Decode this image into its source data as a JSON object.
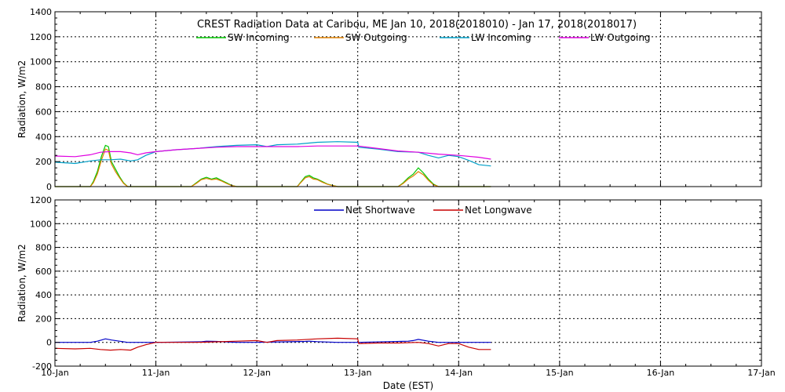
{
  "chart_data": [
    {
      "type": "line",
      "title": "CREST Radiation Data at Caribou, ME   Jan 10, 2018(2018010) - Jan 17, 2018(2018017)",
      "xlabel": "",
      "ylabel": "Radiation, W/m2",
      "ylim": [
        0,
        1400
      ],
      "yticks": [
        0,
        200,
        400,
        600,
        800,
        1000,
        1200,
        1400
      ],
      "xlim": [
        0,
        7
      ],
      "xticks": [
        0,
        1,
        2,
        3,
        4,
        5,
        6,
        7
      ],
      "grid": true,
      "legend": "top-center",
      "series": [
        {
          "name": "SW Incoming",
          "color": "#00c800",
          "x": [
            0.0,
            0.35,
            0.38,
            0.42,
            0.46,
            0.5,
            0.53,
            0.56,
            0.6,
            0.64,
            0.68,
            0.72,
            1.0,
            1.35,
            1.4,
            1.45,
            1.5,
            1.55,
            1.6,
            1.65,
            1.7,
            1.75,
            1.8,
            2.0,
            2.4,
            2.44,
            2.48,
            2.52,
            2.56,
            2.6,
            2.65,
            2.7,
            2.75,
            2.8,
            2.85,
            3.0,
            3.4,
            3.45,
            3.5,
            3.55,
            3.6,
            3.65,
            3.7,
            3.75,
            3.8,
            4.0,
            4.32
          ],
          "y": [
            0,
            0,
            40,
            120,
            240,
            330,
            320,
            200,
            140,
            80,
            30,
            0,
            0,
            0,
            30,
            60,
            75,
            60,
            70,
            50,
            30,
            10,
            0,
            0,
            0,
            40,
            80,
            90,
            70,
            60,
            40,
            20,
            10,
            0,
            0,
            0,
            0,
            30,
            70,
            100,
            150,
            110,
            60,
            20,
            0,
            0,
            0
          ]
        },
        {
          "name": "SW Outgoing",
          "color": "#e08000",
          "x": [
            0.0,
            0.35,
            0.38,
            0.42,
            0.46,
            0.5,
            0.53,
            0.56,
            0.6,
            0.64,
            0.68,
            0.72,
            1.0,
            1.35,
            1.4,
            1.45,
            1.5,
            1.55,
            1.6,
            1.65,
            1.7,
            1.75,
            1.8,
            2.0,
            2.4,
            2.44,
            2.48,
            2.52,
            2.56,
            2.6,
            2.65,
            2.7,
            2.75,
            2.8,
            2.85,
            3.0,
            3.4,
            3.45,
            3.5,
            3.55,
            3.6,
            3.65,
            3.7,
            3.75,
            3.8,
            4.0,
            4.32
          ],
          "y": [
            0,
            0,
            30,
            100,
            210,
            300,
            290,
            180,
            120,
            70,
            25,
            0,
            0,
            0,
            25,
            55,
            65,
            55,
            60,
            45,
            25,
            8,
            0,
            0,
            0,
            35,
            70,
            80,
            60,
            55,
            35,
            18,
            8,
            0,
            0,
            0,
            0,
            25,
            60,
            85,
            120,
            95,
            50,
            15,
            0,
            0,
            0
          ]
        },
        {
          "name": "LW Incoming",
          "color": "#00a0c8",
          "x": [
            0.0,
            0.2,
            0.35,
            0.45,
            0.55,
            0.65,
            0.75,
            0.82,
            0.9,
            1.0,
            1.2,
            1.4,
            1.6,
            1.8,
            2.0,
            2.1,
            2.2,
            2.4,
            2.6,
            2.8,
            3.0,
            3.01,
            3.2,
            3.4,
            3.6,
            3.7,
            3.8,
            3.9,
            4.0,
            4.1,
            4.2,
            4.32
          ],
          "y": [
            195,
            185,
            205,
            215,
            215,
            220,
            205,
            215,
            250,
            280,
            295,
            305,
            320,
            330,
            335,
            320,
            335,
            340,
            355,
            360,
            355,
            315,
            300,
            280,
            275,
            250,
            230,
            250,
            240,
            210,
            175,
            165
          ]
        },
        {
          "name": "LW Outgoing",
          "color": "#e000e0",
          "x": [
            0.0,
            0.2,
            0.35,
            0.45,
            0.55,
            0.65,
            0.75,
            0.82,
            0.9,
            1.0,
            1.2,
            1.4,
            1.6,
            1.8,
            2.0,
            2.2,
            2.4,
            2.6,
            2.8,
            3.0,
            3.2,
            3.4,
            3.6,
            3.8,
            4.0,
            4.2,
            4.32
          ],
          "y": [
            245,
            240,
            255,
            275,
            280,
            280,
            270,
            255,
            270,
            280,
            295,
            305,
            315,
            320,
            320,
            320,
            320,
            325,
            325,
            325,
            305,
            285,
            275,
            260,
            250,
            235,
            220
          ]
        }
      ]
    },
    {
      "type": "line",
      "title": "",
      "xlabel": "Date (EST)",
      "ylabel": "Radiation, W/m2",
      "ylim": [
        -200,
        1200
      ],
      "yticks": [
        -200,
        0,
        200,
        400,
        600,
        800,
        1000,
        1200
      ],
      "xlim": [
        0,
        7
      ],
      "xticks": [
        0,
        1,
        2,
        3,
        4,
        5,
        6,
        7
      ],
      "xticklabels": [
        "10-Jan",
        "11-Jan",
        "12-Jan",
        "13-Jan",
        "14-Jan",
        "15-Jan",
        "16-Jan",
        "17-Jan"
      ],
      "grid": true,
      "legend": "top-center",
      "series": [
        {
          "name": "Net Shortwave",
          "color": "#0000c8",
          "x": [
            0.0,
            0.35,
            0.42,
            0.5,
            0.56,
            0.64,
            0.72,
            1.0,
            1.45,
            1.5,
            1.6,
            1.8,
            2.0,
            2.48,
            2.52,
            2.6,
            2.8,
            3.0,
            3.5,
            3.55,
            3.6,
            3.7,
            3.8,
            4.0,
            4.32
          ],
          "y": [
            0,
            0,
            10,
            30,
            20,
            10,
            0,
            0,
            5,
            10,
            8,
            0,
            0,
            8,
            10,
            6,
            0,
            0,
            10,
            15,
            25,
            10,
            0,
            0,
            0
          ]
        },
        {
          "name": "Net Longwave",
          "color": "#c80000",
          "x": [
            0.0,
            0.2,
            0.35,
            0.45,
            0.55,
            0.65,
            0.75,
            0.82,
            0.9,
            1.0,
            1.2,
            1.4,
            1.6,
            1.8,
            2.0,
            2.1,
            2.2,
            2.4,
            2.6,
            2.8,
            3.0,
            3.01,
            3.2,
            3.4,
            3.6,
            3.7,
            3.8,
            3.9,
            4.0,
            4.1,
            4.2,
            4.32
          ],
          "y": [
            -50,
            -55,
            -50,
            -60,
            -65,
            -60,
            -65,
            -40,
            -20,
            0,
            0,
            0,
            5,
            10,
            15,
            0,
            15,
            20,
            30,
            35,
            30,
            -10,
            -5,
            -5,
            0,
            -10,
            -30,
            -10,
            -10,
            -40,
            -60,
            -60
          ]
        }
      ]
    }
  ]
}
